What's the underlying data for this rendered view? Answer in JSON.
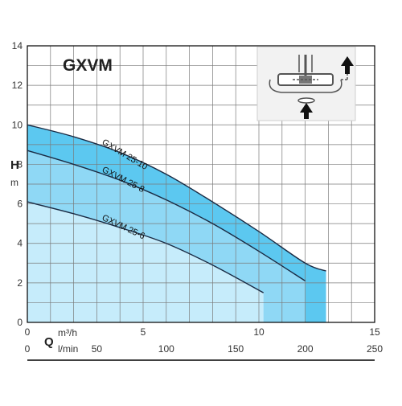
{
  "colors": {
    "background": "#ffffff",
    "grid": "#7a7a7a",
    "axis": "#000000",
    "band_dark": "#5cc8f0",
    "band_mid": "#8fd8f5",
    "band_light": "#c6ecfb",
    "curve": "#1a2b44",
    "text": "#333333",
    "diagram_bg": "#f2f2f2",
    "diagram_stroke": "#555555"
  },
  "chart_data": {
    "type": "line",
    "title": "GXVM",
    "ylabel": "H",
    "yunit": "m",
    "xlabel": "Q",
    "x_primary_unit": "m³/h",
    "x_secondary_unit": "l/min",
    "xlim": [
      0,
      15
    ],
    "ylim": [
      0,
      14
    ],
    "x_primary_ticks": [
      "0",
      "5",
      "10",
      "15"
    ],
    "x_primary_tick_values": [
      0,
      5,
      10,
      15
    ],
    "x_secondary_ticks": [
      "0",
      "50",
      "100",
      "150",
      "200",
      "250"
    ],
    "x_secondary_tick_values_lmin": [
      0,
      50,
      100,
      150,
      200,
      250
    ],
    "y_ticks": [
      "0",
      "2",
      "4",
      "6",
      "8",
      "10",
      "12",
      "14"
    ],
    "y_tick_values": [
      0,
      2,
      4,
      6,
      8,
      10,
      12,
      14
    ],
    "grid": true,
    "series": [
      {
        "name": "GXVM 25-10",
        "x": [
          0,
          2,
          4,
          6,
          8,
          10,
          12,
          12.9
        ],
        "values": [
          10.0,
          9.4,
          8.6,
          7.5,
          6.1,
          4.6,
          3.0,
          2.6
        ]
      },
      {
        "name": "GXVM 25-8",
        "x": [
          0,
          2,
          4,
          6,
          8,
          10,
          12
        ],
        "values": [
          8.7,
          8.0,
          7.2,
          6.2,
          5.0,
          3.6,
          2.1
        ]
      },
      {
        "name": "GXVM 25-6",
        "x": [
          0,
          2,
          4,
          6,
          8,
          10.2
        ],
        "values": [
          6.1,
          5.5,
          4.8,
          4.0,
          2.9,
          1.5
        ]
      }
    ],
    "series_label_style": "rotated text above each curve"
  }
}
